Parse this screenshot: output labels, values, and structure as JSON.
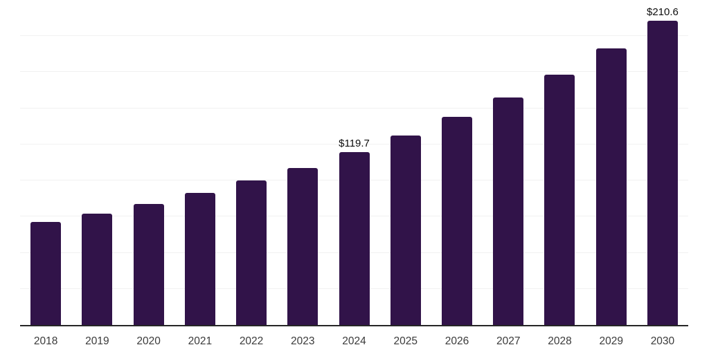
{
  "chart_data": {
    "type": "bar",
    "title": "",
    "xlabel": "",
    "ylabel": "",
    "categories": [
      "2018",
      "2019",
      "2020",
      "2021",
      "2022",
      "2023",
      "2024",
      "2025",
      "2026",
      "2027",
      "2028",
      "2029",
      "2030"
    ],
    "values": [
      71.4,
      77.2,
      83.6,
      91.4,
      100.1,
      108.8,
      119.7,
      131.1,
      143.9,
      157.7,
      173.3,
      191.5,
      210.6
    ],
    "value_prefix": "$",
    "annotations": [
      {
        "category": "2024",
        "label": "$119.7"
      },
      {
        "category": "2030",
        "label": "$210.6"
      }
    ],
    "ylim": [
      0,
      225
    ],
    "gridline_step": 25,
    "grid": "horizontal",
    "legend": "none"
  },
  "colors": {
    "background": "#ffffff",
    "bar": "#311349",
    "axis_line": "#262626",
    "gridline": "#f1f1f1",
    "tick_label": "#3a3a3a",
    "data_label": "#0d0d0d"
  }
}
